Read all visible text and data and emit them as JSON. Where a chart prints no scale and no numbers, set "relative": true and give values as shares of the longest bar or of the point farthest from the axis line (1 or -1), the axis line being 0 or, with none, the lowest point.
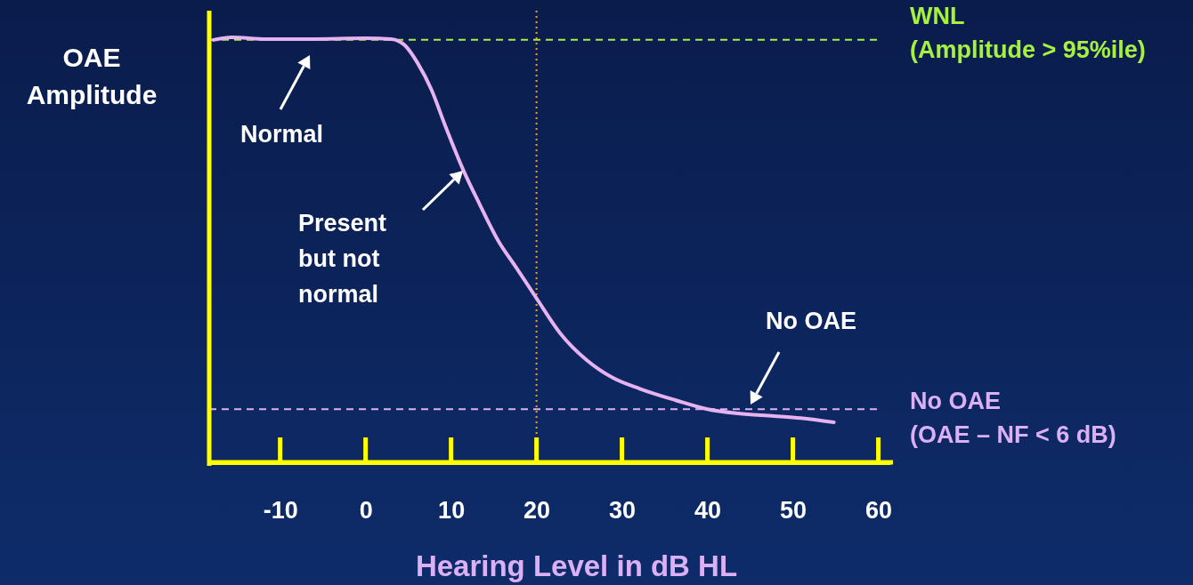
{
  "chart_data": {
    "type": "line",
    "relative": true,
    "xlabel": "Hearing Level in dB HL",
    "ylabel": "OAE\nAmplitude",
    "xlim": [
      -18.3,
      61.4
    ],
    "xticks": [
      -10,
      0,
      10,
      20,
      30,
      40,
      50,
      60
    ],
    "grid": false,
    "marker": "none",
    "line_style": "solid",
    "x": [
      -17.8,
      -15.7,
      -11.6,
      -6.4,
      0,
      3.0,
      4.6,
      6.1,
      7.7,
      9.3,
      11.4,
      13.4,
      15.5,
      17.6,
      20,
      22.8,
      25.9,
      29.0,
      32.1,
      36.3,
      40,
      43.6,
      47.8,
      50.9,
      54.8
    ],
    "series": [
      {
        "color": "#e6b3f0",
        "values": [
          0.994,
          1,
          0.996,
          0.996,
          0.998,
          0.996,
          0.981,
          0.939,
          0.877,
          0.793,
          0.689,
          0.605,
          0.522,
          0.459,
          0.386,
          0.303,
          0.24,
          0.198,
          0.173,
          0.146,
          0.125,
          0.115,
          0.109,
          0.104,
          0.094
        ]
      }
    ],
    "ref_lines": [
      {
        "axis": "y",
        "value": 0.994,
        "label": "WNL\n(Amplitude > 95%ile)",
        "color": "#a6f040",
        "line_style": "dashed"
      },
      {
        "axis": "y",
        "value": 0.125,
        "label": "No OAE\n(OAE – NF < 6 dB)",
        "color": "#dcb0f5",
        "line_style": "dashed"
      },
      {
        "axis": "x",
        "value": 20,
        "color": "#f0a020",
        "line_style": "dotted"
      }
    ],
    "annotations": [
      "Normal",
      "Present\nbut not\nnormal",
      "No OAE"
    ]
  }
}
